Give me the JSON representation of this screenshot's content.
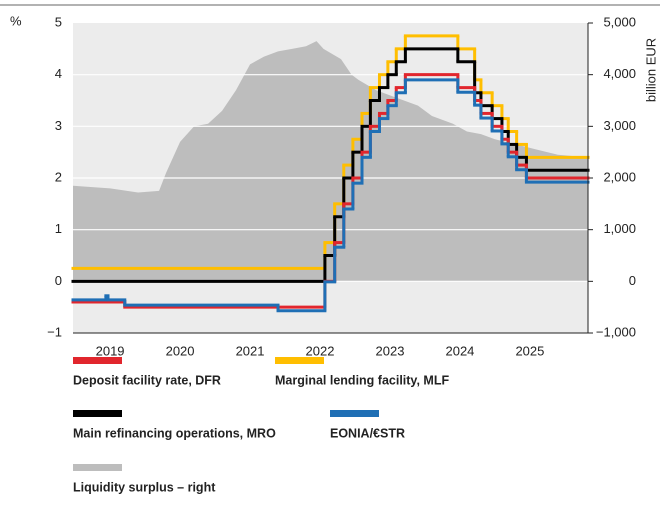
{
  "chart_data": {
    "type": "step-line-area",
    "y_unit_label": "%",
    "y2_label": "billion EUR",
    "xlim": [
      2018.97,
      2026.33
    ],
    "xticks": [
      {
        "value": 2019.5,
        "label": "2019"
      },
      {
        "value": 2020.5,
        "label": "2020"
      },
      {
        "value": 2021.5,
        "label": "2021"
      },
      {
        "value": 2022.5,
        "label": "2022"
      },
      {
        "value": 2023.5,
        "label": "2023"
      },
      {
        "value": 2024.5,
        "label": "2024"
      },
      {
        "value": 2025.5,
        "label": "2025"
      }
    ],
    "ylim": [
      -1,
      5
    ],
    "yticks": [
      {
        "value": -1,
        "label": "−1"
      },
      0,
      1,
      2,
      3,
      4,
      5
    ],
    "y2lim": [
      -1000,
      5000
    ],
    "y2ticks": [
      {
        "value": -1000,
        "label": "−1,000"
      },
      0,
      {
        "value": 1000,
        "label": "1,000"
      },
      {
        "value": 2000,
        "label": "2,000"
      },
      {
        "value": 3000,
        "label": "3,000"
      },
      {
        "value": 4000,
        "label": "4,000"
      },
      {
        "value": 5000,
        "label": "5,000"
      }
    ],
    "grid": true,
    "series": [
      {
        "name": "Liquidity surplus – right",
        "color": "#bdbdbd",
        "kind": "area",
        "axis": "y2",
        "x": [
          2018.97,
          2019.5,
          2019.9,
          2020.2,
          2020.3,
          2020.5,
          2020.7,
          2020.9,
          2021.1,
          2021.3,
          2021.5,
          2021.7,
          2021.9,
          2022.1,
          2022.3,
          2022.45,
          2022.55,
          2022.8,
          2022.95,
          2023.05,
          2023.3,
          2023.5,
          2023.7,
          2023.9,
          2024.1,
          2024.4,
          2024.6,
          2024.8,
          2025.0,
          2025.3,
          2025.6,
          2025.9,
          2026.33
        ],
        "values": [
          1850,
          1800,
          1720,
          1750,
          2100,
          2700,
          3000,
          3050,
          3300,
          3700,
          4200,
          4350,
          4450,
          4500,
          4550,
          4650,
          4500,
          4300,
          4000,
          3900,
          3700,
          3600,
          3500,
          3400,
          3200,
          3050,
          2900,
          2850,
          2750,
          2650,
          2550,
          2450,
          2400
        ]
      },
      {
        "name": "Marginal lending facility, MLF",
        "color": "#ffbe00",
        "kind": "step",
        "x": [
          2018.97,
          2022.57,
          2022.71,
          2022.84,
          2022.97,
          2023.1,
          2023.22,
          2023.35,
          2023.47,
          2023.59,
          2023.72,
          2024.47,
          2024.71,
          2024.8,
          2024.96,
          2025.1,
          2025.19,
          2025.31,
          2025.45
        ],
        "values": [
          0.25,
          0.75,
          1.5,
          2.25,
          2.75,
          3.25,
          3.75,
          4.0,
          4.25,
          4.5,
          4.75,
          4.5,
          3.9,
          3.65,
          3.4,
          3.15,
          2.9,
          2.65,
          2.4
        ]
      },
      {
        "name": "Main refinancing operations, MRO",
        "color": "#000000",
        "kind": "step",
        "x": [
          2018.97,
          2022.57,
          2022.71,
          2022.84,
          2022.97,
          2023.1,
          2023.22,
          2023.35,
          2023.47,
          2023.59,
          2023.72,
          2024.47,
          2024.71,
          2024.8,
          2024.96,
          2025.1,
          2025.19,
          2025.31,
          2025.45
        ],
        "values": [
          0,
          0.5,
          1.25,
          2.0,
          2.5,
          3.0,
          3.5,
          3.75,
          4.0,
          4.25,
          4.5,
          4.25,
          3.65,
          3.4,
          3.15,
          2.9,
          2.65,
          2.4,
          2.15
        ]
      },
      {
        "name": "Deposit facility rate, DFR",
        "color": "#e1262d",
        "kind": "step",
        "x": [
          2018.97,
          2019.71,
          2022.57,
          2022.71,
          2022.84,
          2022.97,
          2023.1,
          2023.22,
          2023.35,
          2023.47,
          2023.59,
          2023.72,
          2024.47,
          2024.71,
          2024.8,
          2024.96,
          2025.1,
          2025.19,
          2025.31,
          2025.45
        ],
        "values": [
          -0.4,
          -0.5,
          0,
          0.75,
          1.5,
          2.0,
          2.5,
          3.0,
          3.25,
          3.5,
          3.75,
          4.0,
          3.75,
          3.5,
          3.25,
          3.0,
          2.75,
          2.5,
          2.25,
          2.0
        ]
      },
      {
        "name": "EONIA/€STR",
        "color": "#1f6fb5",
        "kind": "step",
        "x": [
          2018.97,
          2019.44,
          2019.47,
          2019.71,
          2021.9,
          2022.57,
          2022.71,
          2022.84,
          2022.97,
          2023.1,
          2023.22,
          2023.35,
          2023.47,
          2023.59,
          2023.72,
          2024.47,
          2024.71,
          2024.8,
          2024.96,
          2025.1,
          2025.19,
          2025.31,
          2025.45
        ],
        "values": [
          -0.36,
          -0.28,
          -0.36,
          -0.46,
          -0.57,
          -0.01,
          0.66,
          1.4,
          1.9,
          2.4,
          2.9,
          3.15,
          3.4,
          3.65,
          3.9,
          3.66,
          3.41,
          3.16,
          2.91,
          2.66,
          2.41,
          2.16,
          1.92
        ]
      }
    ],
    "legend_order": [
      3,
      1,
      2,
      4,
      0
    ]
  }
}
